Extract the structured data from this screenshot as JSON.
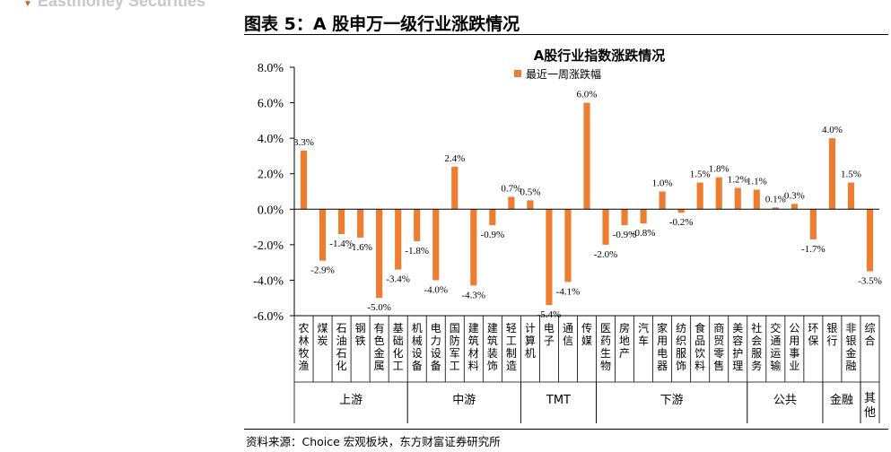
{
  "header": {
    "logo_text": "Eastmoney Securities",
    "figure_title": "图表 5：A 股申万一级行业涨跌情况"
  },
  "footer": {
    "source": "资料来源：Choice 宏观板块，东方财富证券研究所"
  },
  "colors": {
    "bar": "#ED7D31",
    "axis": "#000000",
    "logo_mark": "#E05A2A"
  },
  "chart_data": {
    "type": "bar",
    "title": "A股行业指数涨跌情况",
    "ylim": [
      -6.0,
      8.0
    ],
    "y_ticks": [
      "8.0%",
      "6.0%",
      "4.0%",
      "2.0%",
      "0.0%",
      "-2.0%",
      "-4.0%",
      "-6.0%"
    ],
    "grid": false,
    "legend_position": "top-center",
    "categories": [
      "农林牧渔",
      "煤炭",
      "石油石化",
      "钢铁",
      "有色金属",
      "基础化工",
      "机械设备",
      "电力设备",
      "国防军工",
      "建筑材料",
      "建筑装饰",
      "轻工制造",
      "计算机",
      "电子",
      "通信",
      "传媒",
      "医药生物",
      "房地产",
      "汽车",
      "家用电器",
      "纺织服饰",
      "食品饮料",
      "商贸零售",
      "美容护理",
      "社会服务",
      "交通运输",
      "公用事业",
      "环保",
      "银行",
      "非银金融",
      "综合"
    ],
    "series": [
      {
        "name": "最近一周涨跌幅",
        "values": [
          3.3,
          -2.9,
          -1.4,
          -1.6,
          -5.0,
          -3.4,
          -1.8,
          -4.0,
          2.4,
          -4.3,
          -0.9,
          0.7,
          0.5,
          -5.4,
          -4.1,
          6.0,
          -2.0,
          -0.9,
          -0.8,
          1.0,
          -0.2,
          1.5,
          1.8,
          1.2,
          1.1,
          0.1,
          0.3,
          -1.7,
          4.0,
          1.5,
          -3.5
        ],
        "labels": [
          "3.3%",
          "-2.9%",
          "-1.4%",
          "-1.6%",
          "-5.0%",
          "-3.4%",
          "-1.8%",
          "-4.0%",
          "2.4%",
          "-4.3%",
          "-0.9%",
          "0.7%",
          "0.5%",
          "-5.4%",
          "-4.1%",
          "6.0%",
          "-2.0%",
          "-0.9%",
          "-0.8%",
          "1.0%",
          "-0.2%",
          "1.5%",
          "1.8%",
          "1.2%",
          "1.1%",
          "0.1%",
          "0.3%",
          "-1.7%",
          "4.0%",
          "1.5%",
          "-3.5%"
        ]
      }
    ],
    "groups": [
      {
        "name": "上游",
        "start": 0,
        "end": 5
      },
      {
        "name": "中游",
        "start": 6,
        "end": 11
      },
      {
        "name": "TMT",
        "start": 12,
        "end": 15
      },
      {
        "name": "下游",
        "start": 16,
        "end": 23
      },
      {
        "name": "公共",
        "start": 24,
        "end": 27
      },
      {
        "name": "金融",
        "start": 28,
        "end": 29
      },
      {
        "name": "其他",
        "start": 30,
        "end": 30
      }
    ]
  }
}
